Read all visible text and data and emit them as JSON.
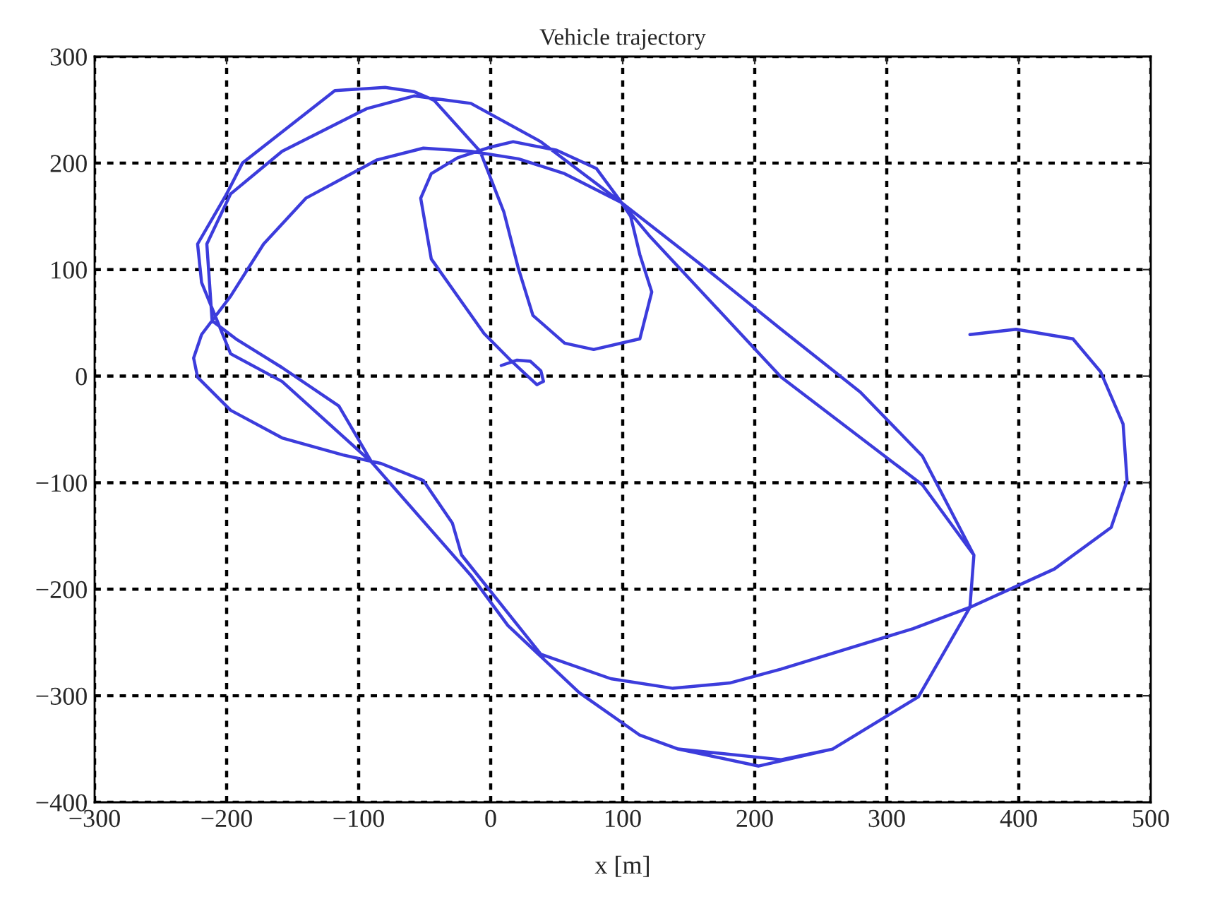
{
  "chart_data": {
    "type": "line",
    "title": "Vehicle trajectory",
    "xlabel": "x [m]",
    "xlim": [
      -300,
      500
    ],
    "ylim": [
      -400,
      300
    ],
    "xticks": [
      {
        "value": -300,
        "label": "−300"
      },
      {
        "value": -200,
        "label": "−200"
      },
      {
        "value": -100,
        "label": "−100"
      },
      0,
      100,
      200,
      300,
      400,
      500
    ],
    "yticks": [
      {
        "value": -400,
        "label": "−400"
      },
      {
        "value": -300,
        "label": "−300"
      },
      {
        "value": -200,
        "label": "−200"
      },
      {
        "value": -100,
        "label": "−100"
      },
      0,
      100,
      200,
      300
    ],
    "grid": true,
    "line_style": "solid",
    "series": [
      {
        "color": "#3c3cdc",
        "x": [
          8,
          20,
          30,
          38,
          40,
          35,
          28,
          15,
          -5,
          -25,
          -45,
          -53,
          -45,
          -25,
          0,
          17,
          50,
          80,
          99,
          160,
          220,
          280,
          327,
          366,
          363,
          324,
          259,
          203,
          142,
          113,
          67,
          13,
          -15,
          -90,
          -158,
          -197,
          -219,
          -222,
          -200,
          -188,
          -118,
          -80,
          -58,
          -43,
          -8,
          10,
          21,
          32,
          56,
          78,
          113,
          122,
          113,
          106,
          99,
          38,
          -15,
          -58,
          -94,
          -158,
          -197,
          -215,
          -211,
          -193,
          -158,
          -115,
          -90,
          -15,
          13,
          67,
          113,
          142,
          220,
          259,
          324,
          363,
          366,
          327,
          220,
          120,
          99,
          56,
          21,
          -15,
          -51,
          -86,
          -140,
          -172,
          -197,
          -219,
          -225,
          -222,
          -197,
          -158,
          -112,
          -83,
          -51,
          -29,
          -22,
          38,
          91,
          138,
          181,
          220,
          320,
          363,
          427,
          470,
          482,
          479,
          462,
          441,
          398,
          363
        ],
        "values": [
          10,
          15,
          14,
          5,
          -5,
          -8,
          0,
          15,
          40,
          75,
          110,
          167,
          190,
          205,
          215,
          220,
          212,
          195,
          163,
          104,
          44,
          -15,
          -75,
          -168,
          -217,
          -301,
          -350,
          -366,
          -350,
          -337,
          -297,
          -234,
          -187,
          -81,
          -5,
          21,
          88,
          124,
          171,
          200,
          268,
          271,
          267,
          259,
          211,
          154,
          101,
          57,
          31,
          25,
          35,
          79,
          114,
          150,
          163,
          220,
          256,
          263,
          251,
          211,
          171,
          124,
          52,
          35,
          8,
          -28,
          -81,
          -187,
          -234,
          -297,
          -337,
          -350,
          -360,
          -350,
          -301,
          -217,
          -168,
          -102,
          -1,
          132,
          163,
          190,
          204,
          211,
          214,
          203,
          167,
          124,
          75,
          39,
          17,
          -1,
          -32,
          -58,
          -74,
          -82,
          -98,
          -138,
          -168,
          -261,
          -284,
          -293,
          -288,
          -275,
          -237,
          -217,
          -181,
          -142,
          -98,
          -45,
          4,
          35,
          44,
          39
        ]
      }
    ]
  }
}
